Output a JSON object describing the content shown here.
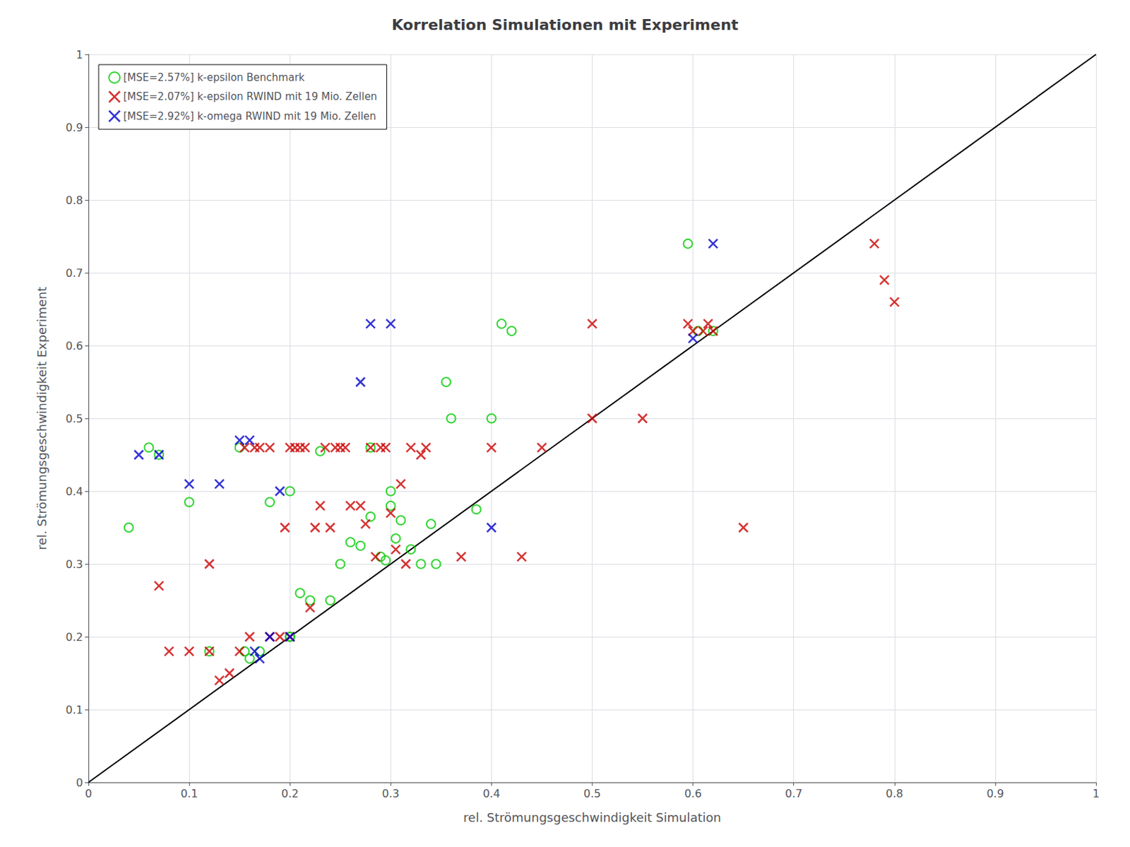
{
  "chart_data": {
    "type": "scatter",
    "title": "Korrelation Simulationen mit Experiment",
    "xlabel": "rel. Strömungsgeschwindigkeit Simulation",
    "ylabel": "rel. Strömungsgeschwindigkeit Experiment",
    "xlim": [
      0,
      1
    ],
    "ylim": [
      0,
      1
    ],
    "xticks": [
      0,
      0.1,
      0.2,
      0.3,
      0.4,
      0.5,
      0.6,
      0.7,
      0.8,
      0.9,
      1
    ],
    "yticks": [
      0,
      0.1,
      0.2,
      0.3,
      0.4,
      0.5,
      0.6,
      0.7,
      0.8,
      0.9,
      1
    ],
    "grid": true,
    "legend": "upper left",
    "series": [
      {
        "type": "line",
        "color": "#000000",
        "line_style": "solid",
        "x": [
          0,
          1
        ],
        "values": [
          0,
          1
        ]
      },
      {
        "name": "[MSE=2.57%] k-epsilon Benchmark",
        "type": "scatter",
        "color": "#00CC00",
        "marker": "open_circle",
        "x": [
          0.04,
          0.06,
          0.07,
          0.1,
          0.12,
          0.15,
          0.155,
          0.16,
          0.17,
          0.18,
          0.2,
          0.2,
          0.2,
          0.21,
          0.22,
          0.23,
          0.24,
          0.25,
          0.26,
          0.27,
          0.28,
          0.28,
          0.29,
          0.295,
          0.3,
          0.3,
          0.305,
          0.31,
          0.32,
          0.33,
          0.34,
          0.345,
          0.355,
          0.36,
          0.385,
          0.4,
          0.41,
          0.42,
          0.595,
          0.605,
          0.62
        ],
        "values": [
          0.35,
          0.46,
          0.45,
          0.385,
          0.18,
          0.46,
          0.18,
          0.17,
          0.18,
          0.385,
          0.2,
          0.2,
          0.4,
          0.26,
          0.25,
          0.455,
          0.25,
          0.3,
          0.33,
          0.325,
          0.365,
          0.46,
          0.31,
          0.305,
          0.38,
          0.4,
          0.335,
          0.36,
          0.32,
          0.3,
          0.355,
          0.3,
          0.55,
          0.5,
          0.375,
          0.5,
          0.63,
          0.62,
          0.74,
          0.62,
          0.62
        ]
      },
      {
        "name": "[MSE=2.07%] k-epsilon RWIND mit 19 Mio. Zellen",
        "type": "scatter",
        "color": "#CC0000",
        "marker": "x",
        "x": [
          0.07,
          0.08,
          0.1,
          0.12,
          0.12,
          0.13,
          0.14,
          0.15,
          0.155,
          0.16,
          0.165,
          0.17,
          0.18,
          0.18,
          0.19,
          0.195,
          0.2,
          0.2,
          0.205,
          0.21,
          0.215,
          0.22,
          0.225,
          0.23,
          0.235,
          0.24,
          0.245,
          0.25,
          0.255,
          0.26,
          0.27,
          0.275,
          0.28,
          0.285,
          0.29,
          0.295,
          0.3,
          0.305,
          0.31,
          0.315,
          0.32,
          0.33,
          0.335,
          0.37,
          0.4,
          0.43,
          0.45,
          0.5,
          0.5,
          0.55,
          0.595,
          0.6,
          0.61,
          0.615,
          0.62,
          0.65,
          0.78,
          0.79,
          0.8
        ],
        "values": [
          0.27,
          0.18,
          0.18,
          0.18,
          0.3,
          0.14,
          0.15,
          0.18,
          0.46,
          0.2,
          0.46,
          0.46,
          0.46,
          0.2,
          0.2,
          0.35,
          0.46,
          0.2,
          0.46,
          0.46,
          0.46,
          0.24,
          0.35,
          0.38,
          0.46,
          0.35,
          0.46,
          0.46,
          0.46,
          0.38,
          0.38,
          0.355,
          0.46,
          0.31,
          0.46,
          0.46,
          0.37,
          0.32,
          0.41,
          0.3,
          0.46,
          0.45,
          0.46,
          0.31,
          0.46,
          0.31,
          0.46,
          0.5,
          0.63,
          0.5,
          0.63,
          0.62,
          0.62,
          0.63,
          0.62,
          0.35,
          0.74,
          0.69,
          0.66
        ]
      },
      {
        "name": "[MSE=2.92%] k-omega RWIND mit 19 Mio. Zellen",
        "type": "scatter",
        "color": "#0000CC",
        "marker": "x",
        "x": [
          0.05,
          0.07,
          0.1,
          0.13,
          0.15,
          0.16,
          0.165,
          0.17,
          0.18,
          0.19,
          0.2,
          0.27,
          0.28,
          0.3,
          0.4,
          0.6,
          0.62
        ],
        "values": [
          0.45,
          0.45,
          0.41,
          0.41,
          0.47,
          0.47,
          0.18,
          0.17,
          0.2,
          0.4,
          0.2,
          0.55,
          0.63,
          0.63,
          0.35,
          0.61,
          0.74
        ]
      }
    ]
  }
}
